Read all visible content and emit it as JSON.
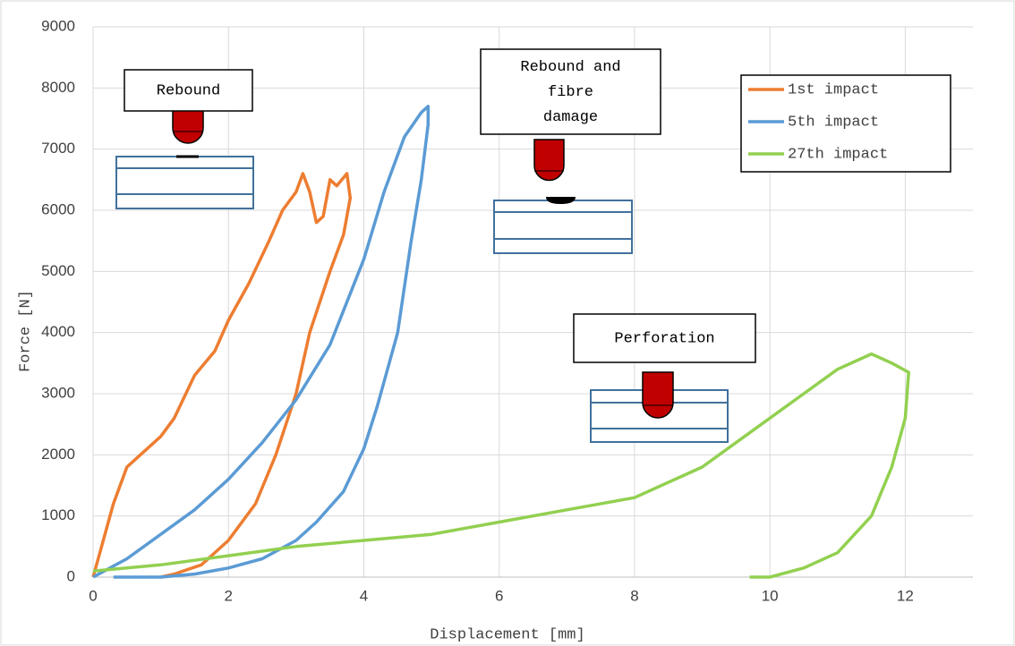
{
  "chart_data": {
    "type": "line",
    "x_label": "Displacement [mm]",
    "y_label": "Force [N]",
    "xlim": [
      0,
      13
    ],
    "xticks": [
      0,
      2,
      4,
      6,
      8,
      10,
      12
    ],
    "ylim": [
      0,
      9000
    ],
    "yticks": [
      0,
      1000,
      2000,
      3000,
      4000,
      5000,
      6000,
      7000,
      8000,
      9000
    ],
    "grid": true,
    "legend": "top-right",
    "annotations": [
      [
        "Rebound"
      ],
      [
        "Rebound and",
        "fibre",
        "damage"
      ],
      [
        "Perforation"
      ]
    ],
    "series": [
      {
        "name": "1st impact",
        "color": "#ed7d31",
        "x": [
          0,
          0.1,
          0.3,
          0.5,
          0.7,
          1,
          1.2,
          1.5,
          1.8,
          2,
          2.3,
          2.6,
          2.8,
          3,
          3.1,
          3.2,
          3.3,
          3.4,
          3.5,
          3.6,
          3.75,
          3.8,
          3.7,
          3.5,
          3.2,
          3,
          2.7,
          2.4,
          2,
          1.6,
          1.2,
          1
        ],
        "values": [
          0,
          400,
          1200,
          1800,
          2000,
          2300,
          2600,
          3300,
          3700,
          4200,
          4800,
          5500,
          6000,
          6300,
          6600,
          6300,
          5800,
          5900,
          6500,
          6400,
          6600,
          6200,
          5600,
          5000,
          4000,
          3000,
          2000,
          1200,
          600,
          200,
          50,
          0
        ]
      },
      {
        "name": "5th impact",
        "color": "#5b9bd5",
        "x": [
          0,
          0.5,
          1,
          1.5,
          2,
          2.5,
          3,
          3.5,
          4,
          4.3,
          4.6,
          4.85,
          4.95,
          4.95,
          4.85,
          4.7,
          4.5,
          4.2,
          4,
          3.7,
          3.3,
          3,
          2.5,
          2,
          1.5,
          1,
          0.3
        ],
        "values": [
          0,
          300,
          700,
          1100,
          1600,
          2200,
          2900,
          3800,
          5200,
          6300,
          7200,
          7600,
          7700,
          7400,
          6500,
          5500,
          4000,
          2800,
          2100,
          1400,
          900,
          600,
          300,
          150,
          50,
          0,
          0
        ]
      },
      {
        "name": "27th impact",
        "color": "#92d050",
        "x": [
          0,
          1,
          2,
          3,
          4,
          5,
          6,
          7,
          8,
          9,
          9.5,
          10,
          10.5,
          11,
          11.5,
          11.8,
          12.05,
          12,
          11.8,
          11.5,
          11,
          10.5,
          10,
          9.7
        ],
        "values": [
          100,
          200,
          350,
          500,
          600,
          700,
          900,
          1100,
          1300,
          1800,
          2200,
          2600,
          3000,
          3400,
          3650,
          3500,
          3350,
          2600,
          1800,
          1000,
          400,
          150,
          0,
          0
        ]
      }
    ]
  }
}
